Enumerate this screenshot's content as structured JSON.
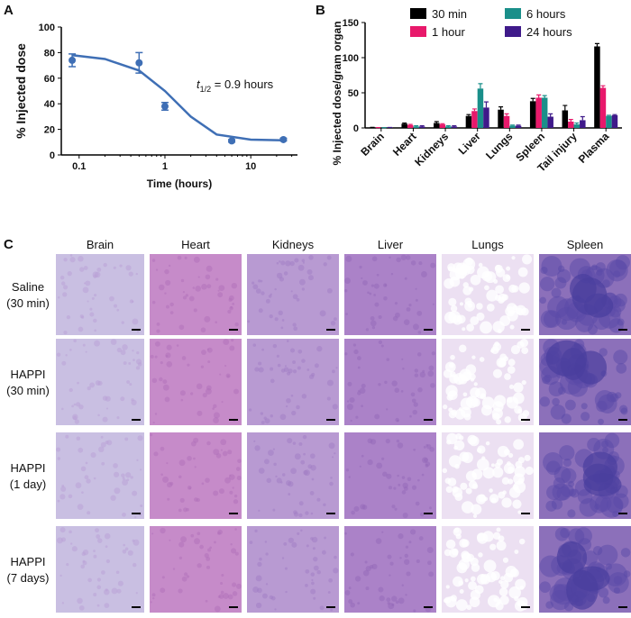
{
  "panel_labels": [
    "A",
    "B",
    "C"
  ],
  "chart_data": [
    {
      "type": "scatter",
      "x_label": "Time (hours)",
      "y_label": "% Injected dose",
      "annotation": [
        "t",
        "1/2",
        " = 0.9 hours"
      ],
      "x": [
        0.083,
        0.5,
        1,
        6,
        24
      ],
      "values": [
        74,
        72,
        38,
        11,
        12
      ],
      "errors": [
        5,
        8,
        3,
        1,
        1
      ],
      "fit": {
        "x": [
          0.083,
          0.2,
          0.5,
          1,
          2,
          4,
          10,
          24
        ],
        "values": [
          78,
          75,
          66,
          50,
          30,
          16,
          12,
          11.5
        ]
      },
      "color": "#3f6fb5",
      "log_x": true,
      "xlim": [
        0.062,
        35
      ],
      "xticks": [
        0.1,
        1,
        10
      ],
      "ylim": [
        0,
        100
      ],
      "yticks": [
        0,
        20,
        40,
        60,
        80,
        100
      ]
    },
    {
      "type": "bar",
      "y_label": "% Injected dose/gram organ",
      "legend": "top",
      "categories": [
        "Brain",
        "Heart",
        "Kidneys",
        "Liver",
        "Lungs",
        "Spleen",
        "Tail injury",
        "Plasma"
      ],
      "series": [
        {
          "name": "30 min",
          "color": "#000000",
          "values": [
            0.5,
            6,
            7,
            17,
            26,
            38,
            25,
            116
          ],
          "errors": [
            0.3,
            1,
            2,
            2,
            4,
            4,
            7,
            4
          ]
        },
        {
          "name": "1 hour",
          "color": "#e8196b",
          "values": [
            0.3,
            4,
            5,
            24,
            17,
            43,
            9,
            57
          ],
          "errors": [
            0.2,
            1,
            1,
            3,
            3,
            4,
            3,
            3
          ]
        },
        {
          "name": "6 hours",
          "color": "#1a8f8a",
          "values": [
            0.2,
            2,
            2,
            56,
            3,
            43,
            5,
            17
          ],
          "errors": [
            0.1,
            1,
            1,
            7,
            1,
            3,
            2,
            1
          ]
        },
        {
          "name": "24 hours",
          "color": "#3f1a8a",
          "values": [
            0.5,
            2,
            2,
            29,
            3,
            16,
            11,
            18
          ],
          "errors": [
            0.2,
            1,
            1,
            8,
            1,
            4,
            5,
            1
          ]
        }
      ],
      "ylim": [
        0,
        150
      ],
      "yticks": [
        0,
        50,
        100,
        150
      ]
    }
  ],
  "histology": {
    "columns": [
      "Brain",
      "Heart",
      "Kidneys",
      "Liver",
      "Lungs",
      "Spleen"
    ],
    "rows": [
      [
        "Saline",
        "(30 min)"
      ],
      [
        "HAPPI",
        "(30 min)"
      ],
      [
        "HAPPI",
        "(1 day)"
      ],
      [
        "HAPPI",
        "(7 days)"
      ]
    ]
  }
}
